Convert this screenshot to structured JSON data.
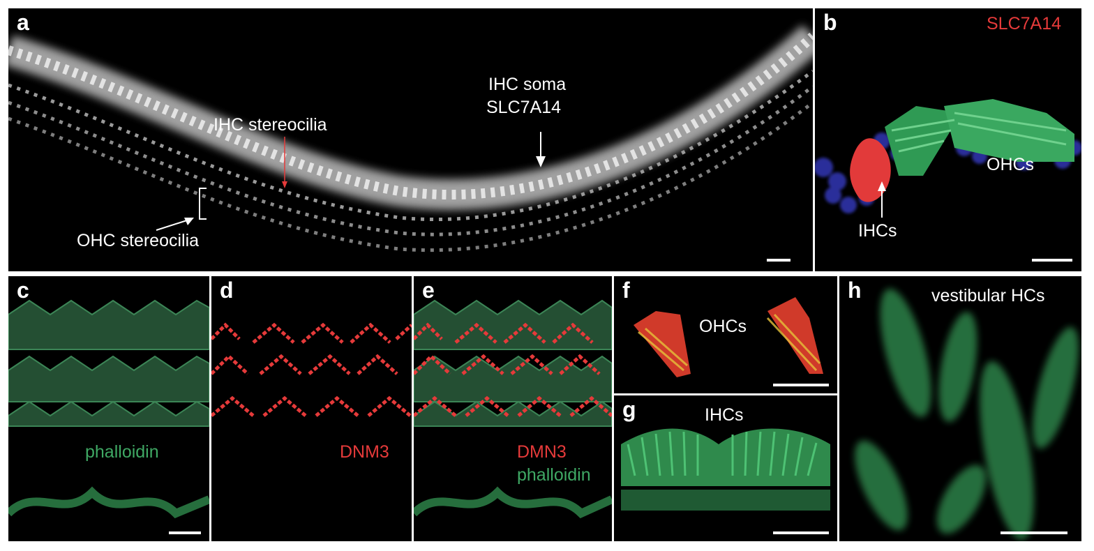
{
  "panels": {
    "a": {
      "letter": "a",
      "labels": {
        "ihc_stereocilia": "IHC stereocilia",
        "ihc_soma_line1": "IHC soma",
        "ihc_soma_line2": "SLC7A14",
        "ohc_stereocilia": "OHC stereocilia"
      }
    },
    "b": {
      "letter": "b",
      "labels": {
        "marker": "SLC7A14",
        "ohcs": "OHCs",
        "ihcs": "IHCs"
      }
    },
    "c": {
      "letter": "c",
      "labels": {
        "stain": "phalloidin"
      }
    },
    "d": {
      "letter": "d",
      "labels": {
        "stain": "DNM3"
      }
    },
    "e": {
      "letter": "e",
      "labels": {
        "stain_red": "DMN3",
        "stain_green": "phalloidin"
      }
    },
    "f": {
      "letter": "f",
      "labels": {
        "cells": "OHCs"
      }
    },
    "g": {
      "letter": "g",
      "labels": {
        "cells": "IHCs"
      }
    },
    "h": {
      "letter": "h",
      "labels": {
        "cells": "vestibular HCs"
      }
    }
  },
  "colors": {
    "red": "#e53a3a",
    "green": "#3fa864",
    "blue": "#2a2f9a",
    "background": "#000000"
  }
}
